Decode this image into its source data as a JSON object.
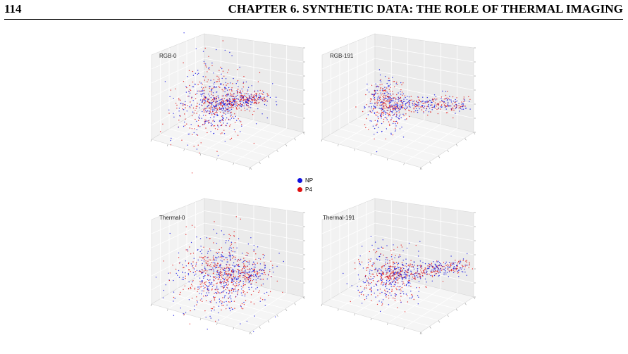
{
  "header": {
    "page_number": "114",
    "chapter_title": "CHAPTER 6. SYNTHETIC DATA: THE ROLE OF THERMAL IMAGING"
  },
  "legend": [
    {
      "label": "NP",
      "color": "#1010e0"
    },
    {
      "label": "P4",
      "color": "#e01010"
    }
  ],
  "chart_data": [
    {
      "type": "scatter",
      "title": "RGB-0",
      "series_names": [
        "NP",
        "P4"
      ],
      "grid": true
    },
    {
      "type": "scatter",
      "title": "RGB-191",
      "series_names": [
        "NP",
        "P4"
      ],
      "grid": true
    },
    {
      "type": "scatter",
      "title": "Thermal-0",
      "series_names": [
        "NP",
        "P4"
      ],
      "grid": true
    },
    {
      "type": "scatter",
      "title": "Thermal-191",
      "series_names": [
        "NP",
        "P4"
      ],
      "grid": true
    }
  ]
}
